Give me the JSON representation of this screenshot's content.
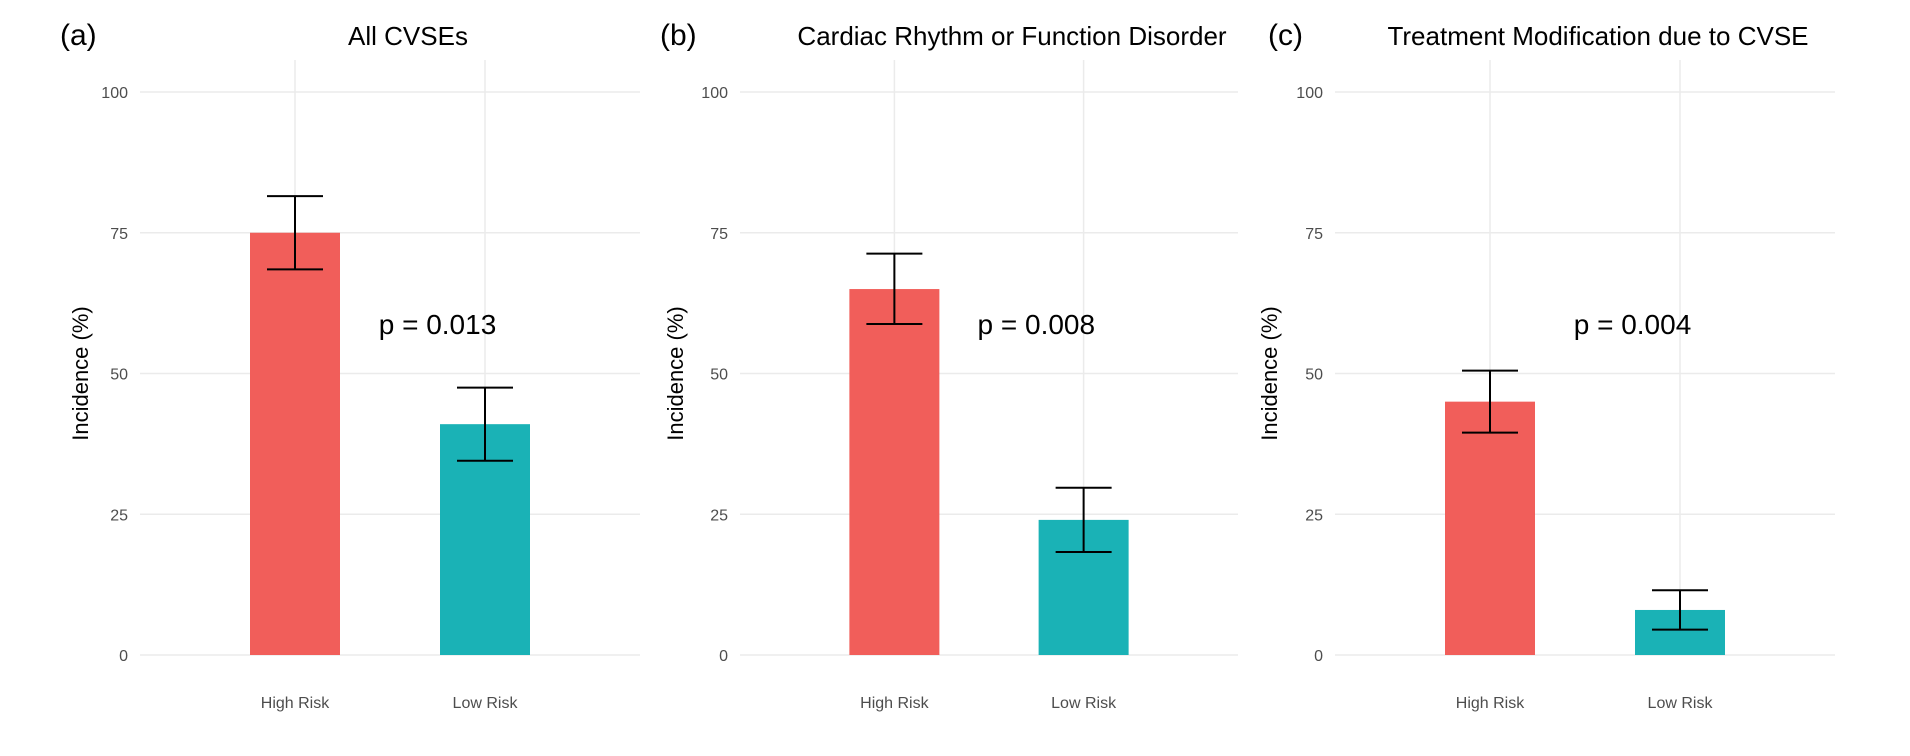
{
  "colors": {
    "high": "#f15e5a",
    "low": "#1ab2b6",
    "grid": "#ebebeb"
  },
  "chart_data": [
    {
      "type": "bar",
      "tag": "(a)",
      "title": "All CVSEs",
      "ylabel": "Incidence (%)",
      "xlabel": "",
      "ylim": [
        0,
        100
      ],
      "yticks": [
        0,
        25,
        50,
        75,
        100
      ],
      "categories": [
        "High Risk",
        "Low Risk"
      ],
      "values": [
        75,
        41
      ],
      "error_low": [
        68.5,
        34.5
      ],
      "error_high": [
        81.5,
        47.5
      ],
      "annotation": "p = 0.013",
      "annotation_at": [
        1.75,
        57
      ]
    },
    {
      "type": "bar",
      "tag": "(b)",
      "title": "Cardiac Rhythm or Function Disorder",
      "ylabel": "Incidence (%)",
      "xlabel": "",
      "ylim": [
        0,
        100
      ],
      "yticks": [
        0,
        25,
        50,
        75,
        100
      ],
      "categories": [
        "High Risk",
        "Low Risk"
      ],
      "values": [
        65,
        24
      ],
      "error_low": [
        58.8,
        18.3
      ],
      "error_high": [
        71.3,
        29.7
      ],
      "annotation": "p = 0.008",
      "annotation_at": [
        1.75,
        57
      ]
    },
    {
      "type": "bar",
      "tag": "(c)",
      "title": "Treatment Modification due to CVSE",
      "ylabel": "Incidence (%)",
      "xlabel": "",
      "ylim": [
        0,
        100
      ],
      "yticks": [
        0,
        25,
        50,
        75,
        100
      ],
      "categories": [
        "High Risk",
        "Low Risk"
      ],
      "values": [
        45,
        8
      ],
      "error_low": [
        39.5,
        4.5
      ],
      "error_high": [
        50.5,
        11.5
      ],
      "annotation": "p = 0.004",
      "annotation_at": [
        1.75,
        57
      ]
    }
  ]
}
